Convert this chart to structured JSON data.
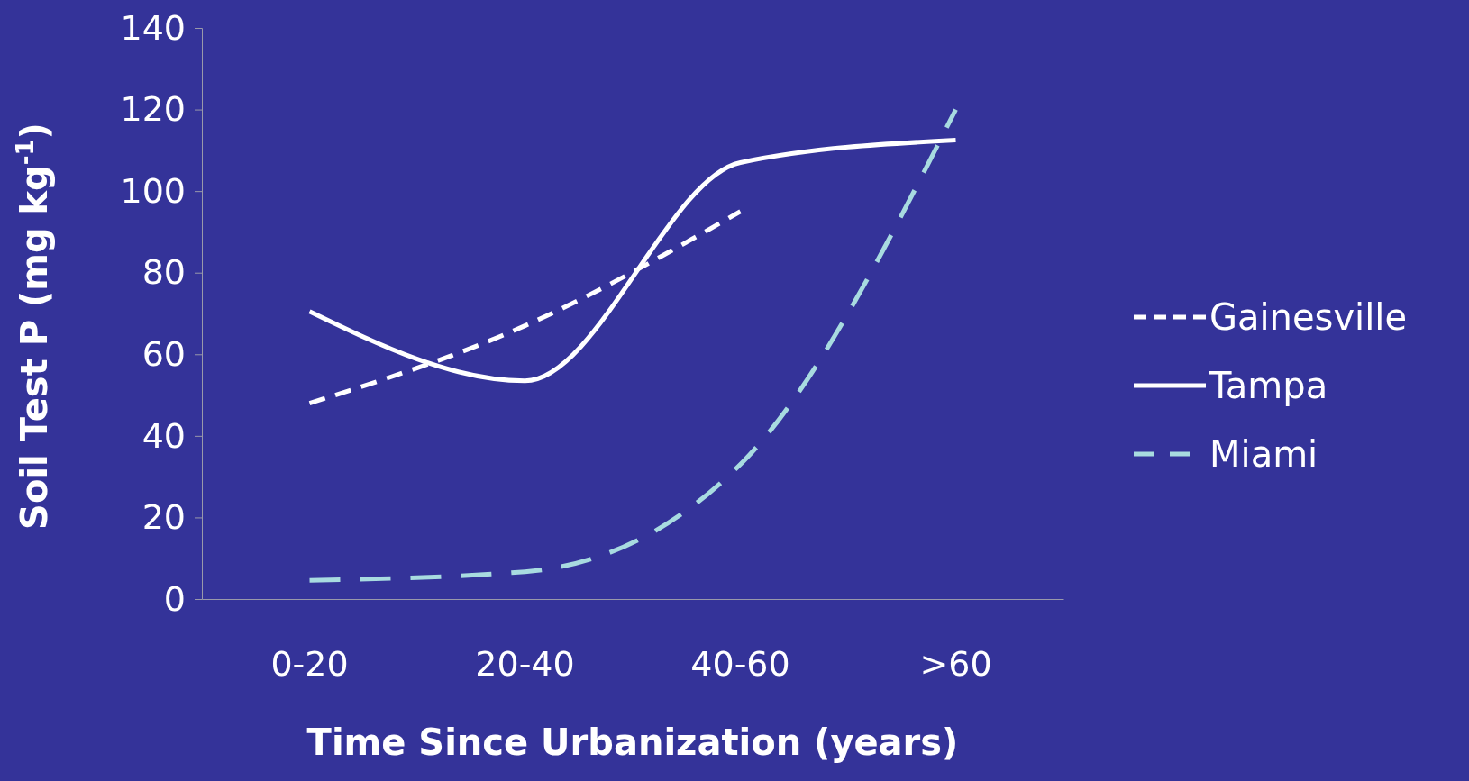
{
  "chart_data": {
    "type": "line",
    "xlabel": "Time Since Urbanization (years)",
    "ylabel": "Soil Test P (mg kg$^{-1}$)",
    "categories": [
      "0-20",
      "20-40",
      "40-60",
      ">60"
    ],
    "ylim": [
      0,
      140
    ],
    "yticks": [
      0,
      20,
      40,
      60,
      80,
      100,
      120,
      140
    ],
    "grid": false,
    "legend": "right",
    "marker": "none",
    "series": [
      {
        "name": "Gainesville",
        "color": "#ffffff",
        "line_style": "dashed",
        "values": [
          48,
          67,
          95,
          null
        ]
      },
      {
        "name": "Tampa",
        "color": "#ffffff",
        "line_style": "solid",
        "values": [
          70.5,
          53.5,
          107,
          112.5
        ]
      },
      {
        "name": "Miami",
        "color": "#a8dbe0",
        "line_style": "dashed",
        "values": [
          4.6,
          6.7,
          33,
          120
        ]
      }
    ]
  }
}
